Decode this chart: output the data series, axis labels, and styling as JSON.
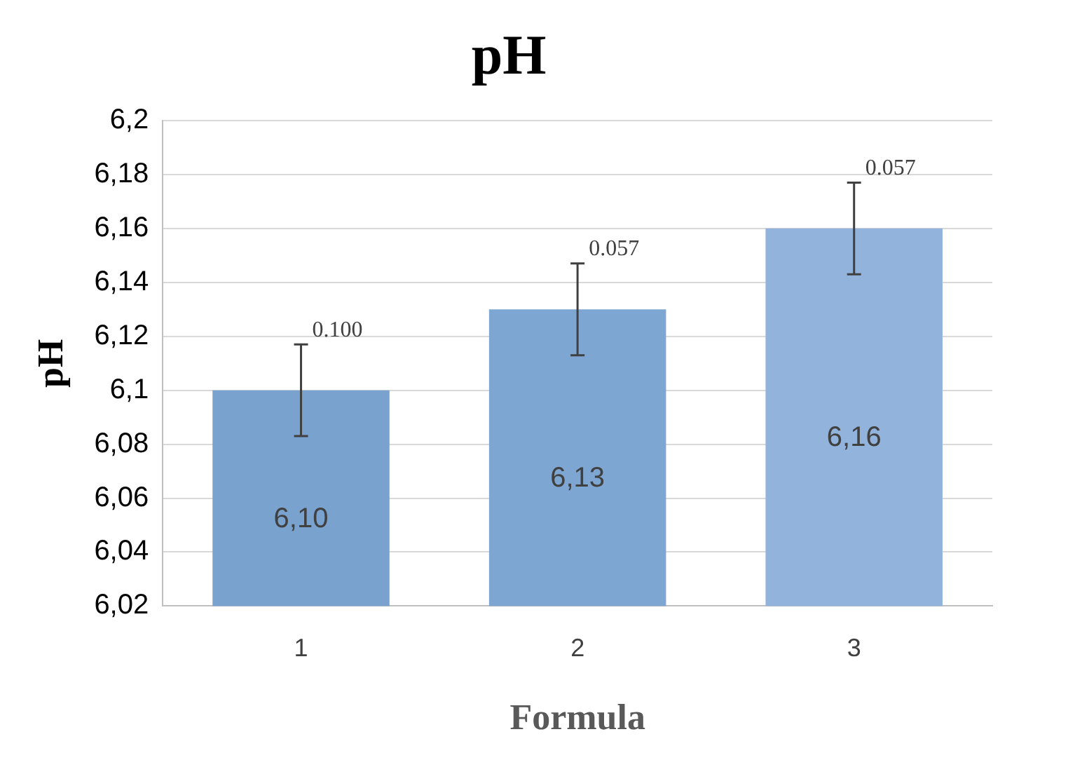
{
  "chart_data": {
    "type": "bar",
    "title": "pH",
    "xlabel": "Formula",
    "ylabel": "pH",
    "categories": [
      "1",
      "2",
      "3"
    ],
    "values": [
      6.1,
      6.13,
      6.16
    ],
    "colors": [
      "#7aa2cf",
      "#7ea6d2",
      "#92b3dc"
    ],
    "errors": [
      0.017,
      0.017,
      0.017
    ],
    "value_labels": [
      "6,10",
      "6,13",
      "6,16"
    ],
    "annotations": [
      {
        "text": "0.100",
        "x": "1",
        "y": 6.117
      },
      {
        "text": "0.057",
        "x": "2",
        "y": 6.147
      },
      {
        "text": "0.057",
        "x": "3",
        "y": 6.177
      }
    ],
    "ylim": [
      6.02,
      6.2
    ],
    "yticks": [
      {
        "value": 6.02,
        "label": "6,02"
      },
      {
        "value": 6.04,
        "label": "6,04"
      },
      {
        "value": 6.06,
        "label": "6,06"
      },
      {
        "value": 6.08,
        "label": "6,08"
      },
      {
        "value": 6.1,
        "label": "6,1"
      },
      {
        "value": 6.12,
        "label": "6,12"
      },
      {
        "value": 6.14,
        "label": "6,14"
      },
      {
        "value": 6.16,
        "label": "6,16"
      },
      {
        "value": 6.18,
        "label": "6,18"
      },
      {
        "value": 6.2,
        "label": "6,2"
      }
    ],
    "grid": "y"
  }
}
